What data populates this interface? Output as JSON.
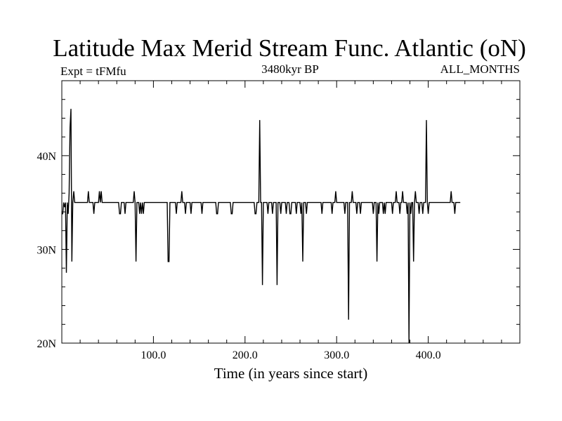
{
  "chart_data": {
    "type": "line",
    "title": "Latitude Max Merid Stream Func. Atlantic (oN)",
    "left_label": "Expt = tFMfu",
    "center_label": "3480kyr BP",
    "right_label": "ALL_MONTHS",
    "xlabel": "Time (in years since start)",
    "ylabel": "",
    "xlim": [
      0,
      500
    ],
    "ylim": [
      20,
      48
    ],
    "x_ticks": [
      100,
      200,
      300,
      400
    ],
    "x_tick_labels": [
      "100.0",
      "200.0",
      "300.0",
      "400.0"
    ],
    "y_ticks": [
      20,
      30,
      40
    ],
    "y_tick_labels": [
      "20N",
      "30N",
      "40N"
    ],
    "grid": false,
    "baseline": 35,
    "series": [
      {
        "name": "",
        "color": "#000000",
        "points": [
          [
            0,
            33.8
          ],
          [
            1,
            33.8
          ],
          [
            2,
            35
          ],
          [
            3,
            34.5
          ],
          [
            4,
            35
          ],
          [
            5,
            27.5
          ],
          [
            6,
            35
          ],
          [
            7,
            33.8
          ],
          [
            8,
            36
          ],
          [
            9,
            43
          ],
          [
            10,
            45
          ],
          [
            11,
            28.7
          ],
          [
            12,
            35
          ],
          [
            13,
            36.2
          ],
          [
            14,
            35
          ],
          [
            28,
            35
          ],
          [
            29,
            36.2
          ],
          [
            30,
            35
          ],
          [
            34,
            35
          ],
          [
            35,
            33.8
          ],
          [
            36,
            35
          ],
          [
            40,
            35
          ],
          [
            41,
            36.2
          ],
          [
            42,
            35
          ],
          [
            43,
            36.2
          ],
          [
            44,
            35
          ],
          [
            62,
            35
          ],
          [
            63,
            33.8
          ],
          [
            64,
            33.8
          ],
          [
            65,
            35
          ],
          [
            68,
            35
          ],
          [
            69,
            33.8
          ],
          [
            70,
            35
          ],
          [
            78,
            35
          ],
          [
            79,
            36.2
          ],
          [
            80,
            35
          ],
          [
            81,
            28.7
          ],
          [
            82,
            35
          ],
          [
            84,
            35
          ],
          [
            85,
            33.8
          ],
          [
            86,
            35
          ],
          [
            87,
            33.8
          ],
          [
            88,
            35
          ],
          [
            89,
            33.8
          ],
          [
            90,
            35
          ],
          [
            115,
            35
          ],
          [
            116,
            28.7
          ],
          [
            117,
            28.7
          ],
          [
            118,
            35
          ],
          [
            124,
            35
          ],
          [
            125,
            33.8
          ],
          [
            126,
            35
          ],
          [
            130,
            35
          ],
          [
            131,
            36.2
          ],
          [
            132,
            35
          ],
          [
            134,
            35
          ],
          [
            135,
            33.8
          ],
          [
            136,
            35
          ],
          [
            140,
            35
          ],
          [
            141,
            33.8
          ],
          [
            142,
            35
          ],
          [
            152,
            35
          ],
          [
            153,
            33.8
          ],
          [
            154,
            35
          ],
          [
            168,
            35
          ],
          [
            169,
            33.8
          ],
          [
            170,
            33.8
          ],
          [
            171,
            35
          ],
          [
            184,
            35
          ],
          [
            185,
            33.8
          ],
          [
            186,
            33.8
          ],
          [
            187,
            35
          ],
          [
            210,
            35
          ],
          [
            211,
            33.8
          ],
          [
            212,
            33.8
          ],
          [
            213,
            35
          ],
          [
            215,
            35
          ],
          [
            216,
            43.8
          ],
          [
            217,
            35
          ],
          [
            218,
            35
          ],
          [
            219,
            26.2
          ],
          [
            220,
            35
          ],
          [
            224,
            35
          ],
          [
            225,
            33.8
          ],
          [
            226,
            35
          ],
          [
            229,
            35
          ],
          [
            230,
            33.8
          ],
          [
            231,
            35
          ],
          [
            234,
            35
          ],
          [
            235,
            26.2
          ],
          [
            236,
            35
          ],
          [
            238,
            35
          ],
          [
            239,
            33.8
          ],
          [
            240,
            35
          ],
          [
            244,
            35
          ],
          [
            245,
            33.8
          ],
          [
            246,
            35
          ],
          [
            248,
            35
          ],
          [
            249,
            33.8
          ],
          [
            250,
            33.8
          ],
          [
            251,
            35
          ],
          [
            255,
            35
          ],
          [
            256,
            33.8
          ],
          [
            257,
            35
          ],
          [
            260,
            35
          ],
          [
            261,
            33.8
          ],
          [
            262,
            35
          ],
          [
            263,
            28.7
          ],
          [
            264,
            35
          ],
          [
            266,
            35
          ],
          [
            267,
            33.8
          ],
          [
            268,
            35
          ],
          [
            283,
            35
          ],
          [
            284,
            33.8
          ],
          [
            285,
            35
          ],
          [
            294,
            35
          ],
          [
            295,
            33.8
          ],
          [
            296,
            35
          ],
          [
            298,
            35
          ],
          [
            299,
            36.2
          ],
          [
            300,
            35
          ],
          [
            308,
            35
          ],
          [
            309,
            33.8
          ],
          [
            310,
            35
          ],
          [
            312,
            35
          ],
          [
            313,
            22.5
          ],
          [
            314,
            35
          ],
          [
            316,
            35
          ],
          [
            317,
            36.2
          ],
          [
            318,
            35
          ],
          [
            321,
            35
          ],
          [
            322,
            33.8
          ],
          [
            323,
            35
          ],
          [
            325,
            35
          ],
          [
            326,
            33.8
          ],
          [
            327,
            35
          ],
          [
            339,
            35
          ],
          [
            340,
            33.8
          ],
          [
            341,
            35
          ],
          [
            343,
            35
          ],
          [
            344,
            28.7
          ],
          [
            345,
            35
          ],
          [
            346,
            33.8
          ],
          [
            347,
            35
          ],
          [
            350,
            35
          ],
          [
            351,
            33.8
          ],
          [
            352,
            35
          ],
          [
            353,
            33.8
          ],
          [
            354,
            35
          ],
          [
            360,
            35
          ],
          [
            361,
            33.8
          ],
          [
            362,
            35
          ],
          [
            364,
            35
          ],
          [
            365,
            36.2
          ],
          [
            366,
            35
          ],
          [
            368,
            35
          ],
          [
            369,
            33.8
          ],
          [
            370,
            35
          ],
          [
            371,
            35
          ],
          [
            372,
            36.2
          ],
          [
            373,
            35
          ],
          [
            376,
            35
          ],
          [
            377,
            33.8
          ],
          [
            378,
            35
          ],
          [
            379,
            20
          ],
          [
            380,
            35
          ],
          [
            381,
            33.8
          ],
          [
            382,
            35
          ],
          [
            383,
            35
          ],
          [
            384,
            28.7
          ],
          [
            385,
            35
          ],
          [
            386,
            36.2
          ],
          [
            387,
            35
          ],
          [
            389,
            35
          ],
          [
            390,
            33.8
          ],
          [
            391,
            35
          ],
          [
            393,
            35
          ],
          [
            394,
            33.8
          ],
          [
            395,
            35
          ],
          [
            397,
            35
          ],
          [
            398,
            43.8
          ],
          [
            399,
            35
          ],
          [
            400,
            33.8
          ],
          [
            401,
            35
          ],
          [
            424,
            35
          ],
          [
            425,
            36.2
          ],
          [
            426,
            35
          ],
          [
            428,
            35
          ],
          [
            429,
            33.8
          ],
          [
            430,
            35
          ],
          [
            435,
            35
          ]
        ]
      }
    ]
  }
}
